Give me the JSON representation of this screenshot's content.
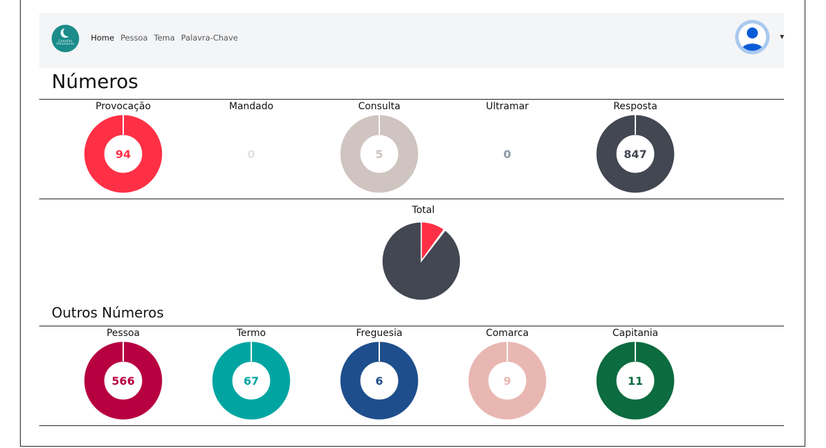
{
  "navbar": {
    "logo_text": "Conselho Ultramarino",
    "links": [
      {
        "label": "Home",
        "active": true
      },
      {
        "label": "Pessoa",
        "active": false
      },
      {
        "label": "Tema",
        "active": false
      },
      {
        "label": "Palavra-Chave",
        "active": false
      }
    ],
    "avatar_icon": "user-avatar-icon",
    "caret_icon": "caret-down-icon"
  },
  "section_main": {
    "title": "Números",
    "stats": [
      {
        "label": "Provocação",
        "value": "94",
        "color": "#ff3045",
        "ring": true
      },
      {
        "label": "Mandado",
        "value": "0",
        "color": "#e2e2e2",
        "ring": false
      },
      {
        "label": "Consulta",
        "value": "5",
        "color": "#cfc4c0",
        "ring": true
      },
      {
        "label": "Ultramar",
        "value": "0",
        "color": "#8e99a8",
        "ring": false
      },
      {
        "label": "Resposta",
        "value": "847",
        "color": "#424752",
        "ring": true
      }
    ]
  },
  "total": {
    "label": "Total",
    "colors": [
      "#ff3045",
      "#424752"
    ]
  },
  "section_other": {
    "title": "Outros Números",
    "stats": [
      {
        "label": "Pessoa",
        "value": "566",
        "color": "#b70040",
        "ring": true
      },
      {
        "label": "Termo",
        "value": "67",
        "color": "#00a5a2",
        "ring": true
      },
      {
        "label": "Freguesia",
        "value": "6",
        "color": "#1e4e8c",
        "ring": true
      },
      {
        "label": "Comarca",
        "value": "9",
        "color": "#e9b7b2",
        "ring": true
      },
      {
        "label": "Capitania",
        "value": "11",
        "color": "#0c6b3f",
        "ring": true
      }
    ]
  }
}
